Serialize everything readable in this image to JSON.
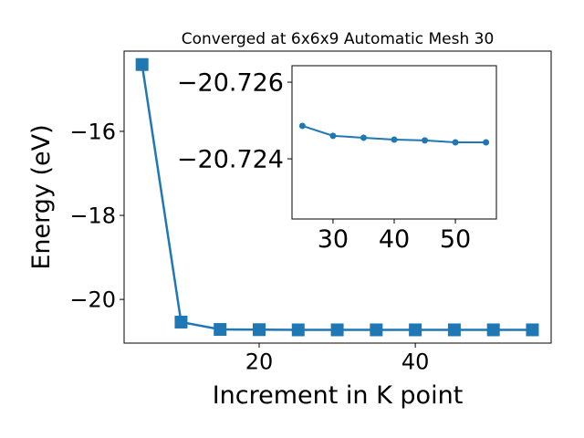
{
  "chart_data": [
    {
      "type": "line",
      "title": "Converged at 6x6x9 Automatic Mesh 30",
      "x_label": "Increment in K point",
      "y_label": "Energy (eV)",
      "x": [
        5,
        10,
        15,
        20,
        25,
        30,
        35,
        40,
        45,
        50,
        55
      ],
      "series": [
        {
          "color": "#1f77b4",
          "marker": "square",
          "values": [
            -14.41,
            -20.54,
            -20.715,
            -20.72,
            -20.72486,
            -20.7246,
            -20.72455,
            -20.7245,
            -20.72448,
            -20.72443,
            -20.72443
          ]
        }
      ],
      "xlim": [
        2.7,
        57.4
      ],
      "ylim": [
        -21.04,
        -14.09
      ],
      "xticks": [
        20,
        40
      ],
      "yticks": [
        -20,
        -18,
        -16
      ]
    },
    {
      "type": "line",
      "x": [
        25,
        30,
        35,
        40,
        45,
        50,
        55
      ],
      "series": [
        {
          "color": "#1f77b4",
          "marker": "circle",
          "values": [
            -20.72486,
            -20.7246,
            -20.72455,
            -20.7245,
            -20.72448,
            -20.72443,
            -20.72443
          ]
        }
      ],
      "xlim": [
        23.3,
        56.7
      ],
      "ylim": [
        -20.72243,
        -20.72643
      ],
      "xticks": [
        30,
        40,
        50
      ],
      "yticks": [
        -20.724,
        -20.726
      ]
    }
  ]
}
